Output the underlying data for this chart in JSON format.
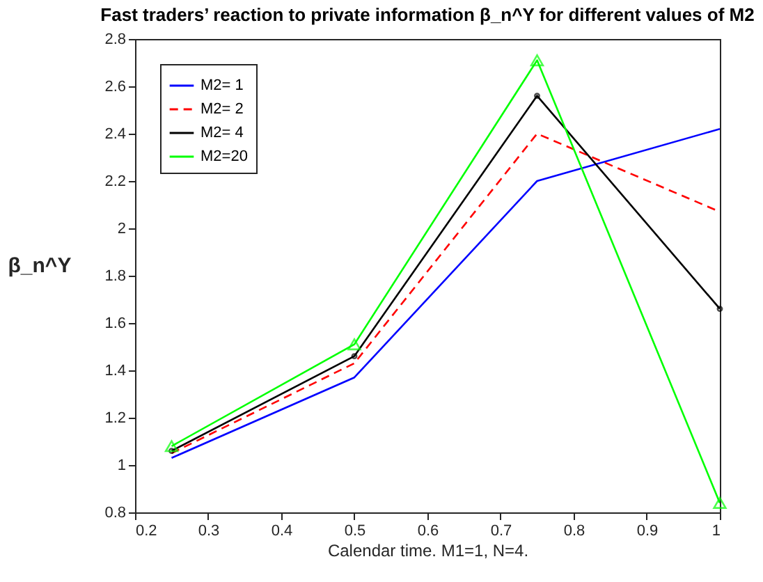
{
  "chart_data": {
    "type": "line",
    "title": "Fast traders’ reaction to private information β_n^Y for different values of M2",
    "xlabel": "Calendar time. M1=1, N=4.",
    "ylabel": "β_n^Y",
    "x": [
      0.25,
      0.5,
      0.75,
      1
    ],
    "series": [
      {
        "name": "M2= 1",
        "color": "#0000ff",
        "line_style": "solid",
        "marker": "none",
        "values": [
          1.03,
          1.37,
          2.2,
          2.42
        ]
      },
      {
        "name": "M2= 2",
        "color": "#ff0000",
        "line_style": "dashed",
        "marker": "none",
        "values": [
          1.05,
          1.43,
          2.4,
          2.07
        ]
      },
      {
        "name": "M2= 4",
        "color": "#000000",
        "line_style": "solid",
        "marker": "circle",
        "values": [
          1.06,
          1.46,
          2.56,
          1.66
        ]
      },
      {
        "name": "M2=20",
        "color": "#00ff00",
        "line_style": "solid",
        "marker": "triangle",
        "values": [
          1.08,
          1.51,
          2.71,
          0.84
        ]
      }
    ],
    "xlim": [
      0.2,
      1
    ],
    "xticks": [
      0.2,
      0.3,
      0.4,
      0.5,
      0.6,
      0.7,
      0.8,
      0.9,
      1
    ],
    "ylim": [
      0.8,
      2.8
    ],
    "yticks": [
      0.8,
      1,
      1.2,
      1.4,
      1.6,
      1.8,
      2,
      2.2,
      2.4,
      2.6,
      2.8
    ],
    "grid": false,
    "legend": "top left"
  }
}
